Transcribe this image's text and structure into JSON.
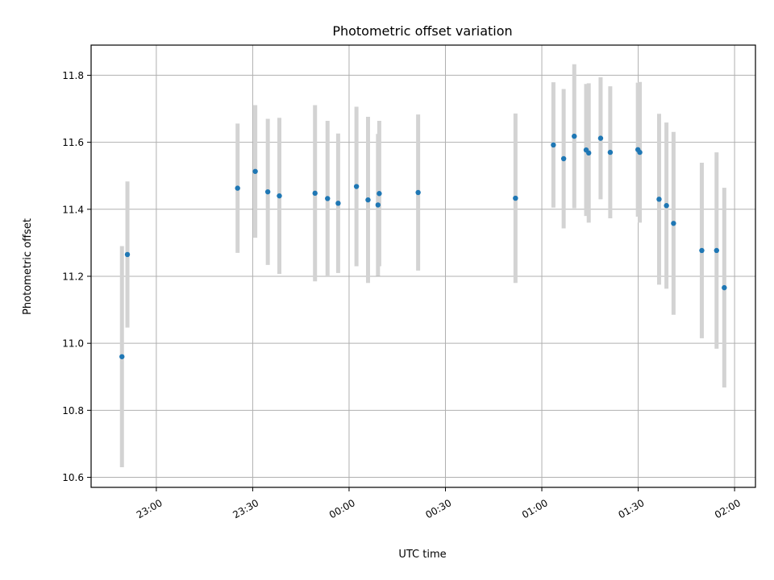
{
  "chart_data": {
    "type": "scatter",
    "title": "Photometric offset variation",
    "xlabel": "UTC time",
    "ylabel": "Photometric offset",
    "x_ticks": [
      "23:00",
      "23:30",
      "00:00",
      "00:30",
      "01:00",
      "01:30",
      "02:00"
    ],
    "x_tick_minutes": [
      0,
      30,
      60,
      90,
      120,
      150,
      180
    ],
    "xlim_minutes": [
      -20.3,
      186.5
    ],
    "y_ticks": [
      10.6,
      10.8,
      11.0,
      11.2,
      11.4,
      11.6,
      11.8
    ],
    "ylim": [
      10.57,
      11.89
    ],
    "grid": true,
    "colors": {
      "points": "#1f77b4",
      "errorbars": "#d3d3d3",
      "grid": "#b0b0b0"
    },
    "series": [
      {
        "x_minutes": [
          -10.7,
          -9.0,
          25.3,
          30.8,
          34.7,
          38.3,
          49.4,
          53.3,
          56.6,
          62.3,
          65.9,
          69.0,
          69.4,
          81.5,
          111.8,
          123.6,
          126.8,
          130.1,
          133.8,
          134.6,
          138.3,
          141.3,
          149.9,
          150.5,
          156.5,
          158.8,
          161.0,
          169.8,
          174.4,
          176.8
        ],
        "y": [
          10.96,
          11.265,
          11.463,
          11.513,
          11.452,
          11.44,
          11.448,
          11.432,
          11.418,
          11.468,
          11.428,
          11.413,
          11.447,
          11.45,
          11.433,
          11.592,
          11.551,
          11.618,
          11.577,
          11.568,
          11.612,
          11.57,
          11.578,
          11.57,
          11.43,
          11.411,
          11.358,
          11.277,
          11.277,
          11.166
        ],
        "y_err": [
          0.33,
          0.218,
          0.193,
          0.198,
          0.218,
          0.233,
          0.263,
          0.232,
          0.208,
          0.238,
          0.248,
          0.212,
          0.217,
          0.233,
          0.253,
          0.187,
          0.208,
          0.215,
          0.197,
          0.208,
          0.182,
          0.197,
          0.2,
          0.21,
          0.255,
          0.248,
          0.273,
          0.262,
          0.293,
          0.298
        ]
      }
    ]
  }
}
